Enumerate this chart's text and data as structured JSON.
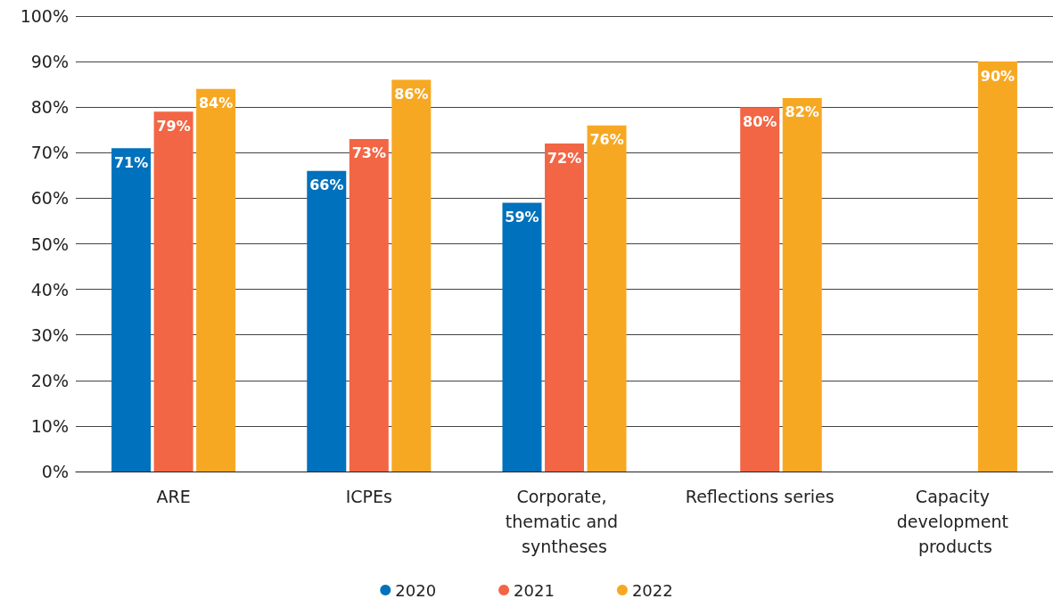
{
  "chart_data": {
    "type": "bar",
    "categories": [
      "ARE",
      "ICPEs",
      "Corporate, thematic and syntheses",
      "Reflections series",
      "Capacity development products"
    ],
    "series": [
      {
        "name": "2020",
        "color": "#0071bc",
        "values": [
          71,
          66,
          59,
          null,
          null
        ],
        "value_labels": [
          "71%",
          "66%",
          "59%",
          null,
          null
        ]
      },
      {
        "name": "2021",
        "color": "#f26645",
        "values": [
          79,
          73,
          72,
          80,
          null
        ],
        "value_labels": [
          "79%",
          "73%",
          "72%",
          "80%",
          null
        ]
      },
      {
        "name": "2022",
        "color": "#f7a823",
        "values": [
          84,
          86,
          76,
          82,
          90
        ],
        "value_labels": [
          "84%",
          "86%",
          "76%",
          "82%",
          "90%"
        ]
      }
    ],
    "ylim": [
      0,
      100
    ],
    "yticks": [
      {
        "value": 0,
        "label": "0%"
      },
      {
        "value": 10,
        "label": "10%"
      },
      {
        "value": 20,
        "label": "20%"
      },
      {
        "value": 30,
        "label": "30%"
      },
      {
        "value": 40,
        "label": "40%"
      },
      {
        "value": 50,
        "label": "50%"
      },
      {
        "value": 60,
        "label": "60%"
      },
      {
        "value": 70,
        "label": "70%"
      },
      {
        "value": 80,
        "label": "80%"
      },
      {
        "value": 90,
        "label": "90%"
      },
      {
        "value": 100,
        "label": "100%"
      }
    ],
    "grid": "y",
    "legend": "bottom"
  }
}
